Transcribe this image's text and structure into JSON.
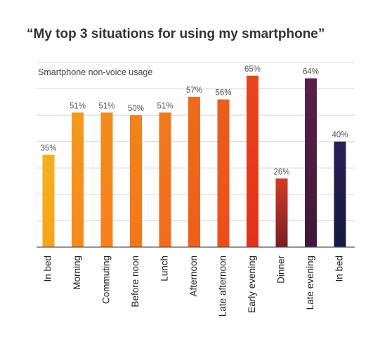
{
  "chart_data": {
    "type": "bar",
    "title": "“My top 3 situations for using my smartphone”",
    "subtitle": "Smartphone non-voice usage",
    "categories": [
      "In bed",
      "Morning",
      "Commuting",
      "Before noon",
      "Lunch",
      "Afternoon",
      "Late afternoon",
      "Early evening",
      "Dinner",
      "Late evening",
      "In bed"
    ],
    "values": [
      35,
      51,
      51,
      50,
      51,
      57,
      56,
      65,
      26,
      64,
      40
    ],
    "data_labels": [
      "35%",
      "51%",
      "51%",
      "50%",
      "51%",
      "57%",
      "56%",
      "65%",
      "26%",
      "64%",
      "40%"
    ],
    "colors": [
      [
        "#f3b01e",
        "#f9a31a"
      ],
      [
        "#f29a1e",
        "#f7881a"
      ],
      [
        "#f28c1e",
        "#f7801a"
      ],
      [
        "#f0841e",
        "#f5761a"
      ],
      [
        "#ee7a1e",
        "#f26c1a"
      ],
      [
        "#ec6c1e",
        "#ef5e1a"
      ],
      [
        "#ea5e1e",
        "#ec4e1a"
      ],
      [
        "#e8461e",
        "#e5301a"
      ],
      [
        "#d33a24",
        "#7a1e24"
      ],
      [
        "#5a2048",
        "#3e1a3a"
      ],
      [
        "#2a1e58",
        "#141a40"
      ]
    ],
    "ylim": [
      0,
      70
    ],
    "grid": true,
    "xlabel": "",
    "ylabel": ""
  }
}
